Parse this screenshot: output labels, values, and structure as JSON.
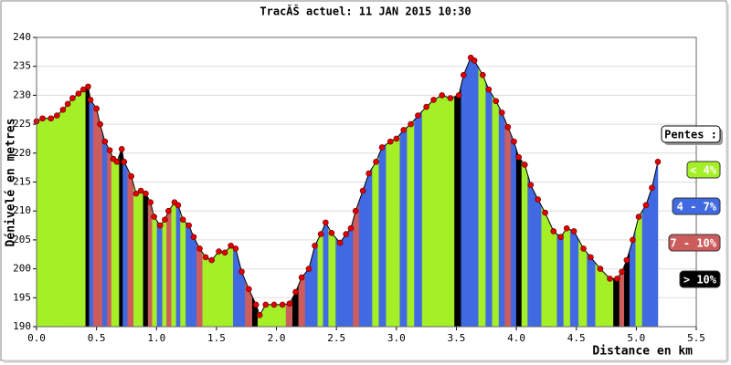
{
  "chart_data": {
    "type": "profile",
    "title": "TracĂŠ actuel: 11 JAN 2015 10:30",
    "x_label": "Distance en km",
    "y_label": "Dénivelé en metres",
    "x": [
      0,
      0.05,
      0.12,
      0.17,
      0.22,
      0.26,
      0.3,
      0.35,
      0.39,
      0.43,
      0.45,
      0.5,
      0.53,
      0.57,
      0.61,
      0.64,
      0.67,
      0.71,
      0.73,
      0.79,
      0.83,
      0.87,
      0.91,
      0.95,
      0.98,
      1.03,
      1.07,
      1.1,
      1.15,
      1.18,
      1.22,
      1.27,
      1.31,
      1.36,
      1.41,
      1.46,
      1.52,
      1.57,
      1.62,
      1.66,
      1.71,
      1.77,
      1.83,
      1.86,
      1.91,
      1.98,
      2.05,
      2.11,
      2.16,
      2.21,
      2.27,
      2.32,
      2.37,
      2.41,
      2.46,
      2.53,
      2.58,
      2.62,
      2.66,
      2.72,
      2.77,
      2.83,
      2.88,
      2.95,
      3.0,
      3.06,
      3.12,
      3.18,
      3.25,
      3.31,
      3.38,
      3.45,
      3.52,
      3.56,
      3.62,
      3.65,
      3.72,
      3.77,
      3.83,
      3.88,
      3.93,
      3.98,
      4.02,
      4.07,
      4.12,
      4.18,
      4.24,
      4.31,
      4.37,
      4.42,
      4.48,
      4.56,
      4.62,
      4.7,
      4.78,
      4.84,
      4.88,
      4.92,
      4.97,
      5.02,
      5.08,
      5.13,
      5.18
    ],
    "values": [
      225.5,
      226,
      226,
      226.5,
      227.5,
      228.5,
      229.5,
      230.3,
      231,
      231.5,
      229.2,
      227.7,
      225,
      222,
      220.5,
      219,
      218.5,
      220.7,
      218.5,
      216,
      213,
      213.5,
      213,
      211.5,
      209,
      207.5,
      208.5,
      210,
      211.5,
      211,
      208.5,
      207.5,
      205.5,
      203.5,
      202,
      201.5,
      203,
      202.8,
      204,
      203.5,
      199.5,
      196.5,
      193.8,
      192,
      193.8,
      193.8,
      193.8,
      194,
      196,
      198.5,
      200,
      204,
      206,
      208,
      206.2,
      204.5,
      206,
      207,
      210,
      213.5,
      216.5,
      218.5,
      221,
      222,
      222.5,
      224,
      225,
      226.5,
      228,
      229.2,
      230,
      229.5,
      230,
      233.5,
      236.5,
      236,
      233.5,
      231,
      229,
      227,
      224.5,
      222,
      219.3,
      218,
      214.5,
      212,
      209.7,
      206.5,
      205.5,
      207,
      206.5,
      203.5,
      202,
      200,
      198.3,
      198.3,
      199.5,
      201.5,
      205,
      209,
      211,
      214,
      218.5
    ],
    "point_colors": [
      "#a5ef27",
      "#a5ef27",
      "#a5ef27",
      "#a5ef27",
      "#a5ef27",
      "#a5ef27",
      "#a5ef27",
      "#a5ef27",
      "#a5ef27",
      "#000000",
      "#4169e1",
      "#cd5c5c",
      "#cd5c5c",
      "#4169e1",
      "#cd5c5c",
      "#a5ef27",
      "#a5ef27",
      "#000000",
      "#4169e1",
      "#cd5c5c",
      "#a5ef27",
      "#a5ef27",
      "#000000",
      "#cd5c5c",
      "#a5ef27",
      "#4169e1",
      "#a5ef27",
      "#cd5c5c",
      "#a5ef27",
      "#4169e1",
      "#a5ef27",
      "#4169e1",
      "#4169e1",
      "#cd5c5c",
      "#a5ef27",
      "#a5ef27",
      "#a5ef27",
      "#a5ef27",
      "#a5ef27",
      "#4169e1",
      "#4169e1",
      "#cd5c5c",
      "#000000",
      "#a5ef27",
      "#a5ef27",
      "#a5ef27",
      "#a5ef27",
      "#cd5c5c",
      "#000000",
      "#cd5c5c",
      "#4169e1",
      "#4169e1",
      "#a5ef27",
      "#4169e1",
      "#a5ef27",
      "#4169e1",
      "#4169e1",
      "#4169e1",
      "#cd5c5c",
      "#4169e1",
      "#4169e1",
      "#a5ef27",
      "#4169e1",
      "#a5ef27",
      "#a5ef27",
      "#4169e1",
      "#a5ef27",
      "#4169e1",
      "#a5ef27",
      "#a5ef27",
      "#a5ef27",
      "#a5ef27",
      "#000000",
      "#4169e1",
      "#4169e1",
      "#4169e1",
      "#a5ef27",
      "#4169e1",
      "#a5ef27",
      "#4169e1",
      "#cd5c5c",
      "#4169e1",
      "#000000",
      "#a5ef27",
      "#4169e1",
      "#4169e1",
      "#a5ef27",
      "#a5ef27",
      "#4169e1",
      "#a5ef27",
      "#4169e1",
      "#a5ef27",
      "#4169e1",
      "#a5ef27",
      "#a5ef27",
      "#000000",
      "#cd5c5c",
      "#000000",
      "#4169e1",
      "#a5ef27",
      "#4169e1",
      "#4169e1",
      "#4169e1"
    ],
    "point_color": "#e00000",
    "xlim": [
      0,
      5.5
    ],
    "xticks": [
      {
        "value": 0,
        "label": "0.0"
      },
      0.5,
      {
        "value": 1,
        "label": "1.0"
      },
      1.5,
      {
        "value": 2,
        "label": "2.0"
      },
      2.5,
      {
        "value": 3,
        "label": "3.0"
      },
      3.5,
      {
        "value": 4,
        "label": "4.0"
      },
      4.5,
      {
        "value": 5,
        "label": "5.0"
      },
      5.5
    ],
    "ylim": [
      190,
      240
    ],
    "yticks": [
      190,
      195,
      200,
      205,
      210,
      215,
      220,
      225,
      230,
      235,
      240
    ],
    "grid": true,
    "legend": {
      "title": "Pentes :",
      "items": [
        {
          "label": "< 4%",
          "color": "#a5ef27"
        },
        {
          "label": "4 - 7%",
          "color": "#4169e1"
        },
        {
          "label": "7 - 10%",
          "color": "#cd5c5c"
        },
        {
          "label": "> 10%",
          "color": "#000000"
        }
      ]
    }
  }
}
